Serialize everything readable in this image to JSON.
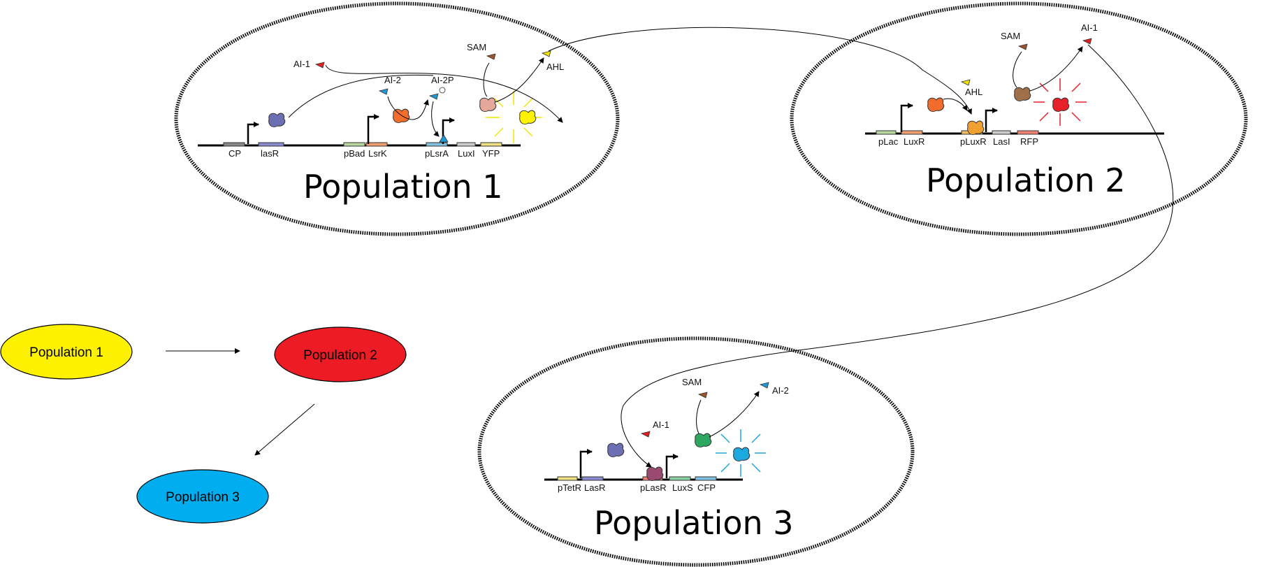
{
  "populations": [
    {
      "title": "Population 1",
      "genes": [
        "CP",
        "lasR",
        "pBad",
        "LsrK",
        "pLsrA",
        "LuxI",
        "YFP"
      ],
      "molecules": [
        "AI-1",
        "AI-2",
        "AI-2P",
        "SAM",
        "AHL"
      ],
      "glow_color": "#f2e600"
    },
    {
      "title": "Population 2",
      "genes": [
        "pLac",
        "LuxR",
        "pLuxR",
        "LasI",
        "RFP"
      ],
      "molecules": [
        "SAM",
        "AI-1",
        "AHL"
      ],
      "glow_color": "#e8202a"
    },
    {
      "title": "Population 3",
      "genes": [
        "pTetR",
        "LasR",
        "pLasR",
        "LuxS",
        "CFP"
      ],
      "molecules": [
        "SAM",
        "AI-2",
        "AI-1"
      ],
      "glow_color": "#1ea8e0"
    }
  ],
  "summary": {
    "nodes": [
      {
        "label": "Population 1",
        "color": "#fff200"
      },
      {
        "label": "Population 2",
        "color": "#ed1c24"
      },
      {
        "label": "Population 3",
        "color": "#00aeef"
      }
    ]
  },
  "colors": {
    "lasR_protein": "#6d6fb5",
    "lsrK_protein": "#f26d2b",
    "sam_enzyme_1": "#e6a89a",
    "sam_enzyme_2": "#a0704a",
    "luxs_protein": "#2ea860",
    "ai1_signal": "#e02020",
    "ai2_signal": "#1e9ad6",
    "ahl_signal": "#f0e000",
    "sam_signal": "#a0522d"
  }
}
